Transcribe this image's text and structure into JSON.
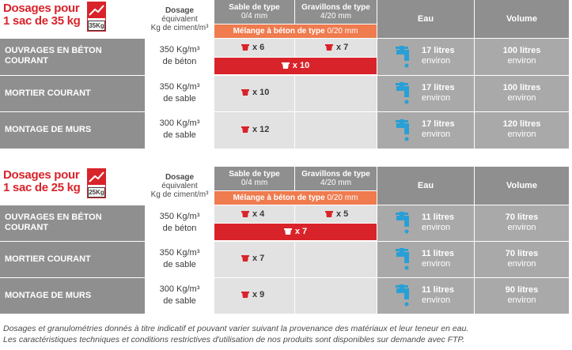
{
  "colors": {
    "red": "#d9232a",
    "orange": "#ef7b4e",
    "grey_dark": "#8f8f8f",
    "grey_light": "#e2e2e2",
    "grey_mid": "#a9a9a9",
    "water_blue": "#2a9fd6"
  },
  "header": {
    "dose_line1": "Dosage",
    "dose_line2": "équivalent",
    "dose_line3": "Kg de ciment/m³",
    "sable_title": "Sable de type",
    "sable_sub": "0/4 mm",
    "grav_title": "Gravillons de type",
    "grav_sub": "4/20 mm",
    "eau": "Eau",
    "volume": "Volume",
    "melange_bold": "Mélange à béton de type",
    "melange_light": "0/20 mm"
  },
  "blocks": [
    {
      "title": "Dosages pour 1 sac de 35 kg",
      "bag_label": "35Kg",
      "rows": [
        {
          "label": "OUVRAGES EN BÉTON COURANT",
          "dose": "350 Kg/m³",
          "dose2": "de béton",
          "sable": "x 6",
          "grav": "x 7",
          "melange": "x 10",
          "eau1": "17 litres",
          "eau2": "environ",
          "vol1": "100 litres",
          "vol2": "environ"
        },
        {
          "label": "MORTIER COURANT",
          "dose": "350 Kg/m³",
          "dose2": "de sable",
          "sable": "x 10",
          "eau1": "17 litres",
          "eau2": "environ",
          "vol1": "100 litres",
          "vol2": "environ"
        },
        {
          "label": "MONTAGE DE MURS",
          "dose": "300 Kg/m³",
          "dose2": "de sable",
          "sable": "x 12",
          "eau1": "17 litres",
          "eau2": "environ",
          "vol1": "120 litres",
          "vol2": "environ"
        }
      ]
    },
    {
      "title": "Dosages pour 1 sac de 25 kg",
      "bag_label": "25Kg",
      "rows": [
        {
          "label": "OUVRAGES EN BÉTON COURANT",
          "dose": "350 Kg/m³",
          "dose2": "de béton",
          "sable": "x 4",
          "grav": "x 5",
          "melange": "x 7",
          "eau1": "11 litres",
          "eau2": "environ",
          "vol1": "70 litres",
          "vol2": "environ"
        },
        {
          "label": "MORTIER COURANT",
          "dose": "350 Kg/m³",
          "dose2": "de sable",
          "sable": "x 7",
          "eau1": "11 litres",
          "eau2": "environ",
          "vol1": "70 litres",
          "vol2": "environ"
        },
        {
          "label": "MONTAGE DE MURS",
          "dose": "300 Kg/m³",
          "dose2": "de sable",
          "sable": "x 9",
          "eau1": "11 litres",
          "eau2": "environ",
          "vol1": "90 litres",
          "vol2": "environ"
        }
      ]
    }
  ],
  "footer": {
    "line1": "Dosages et granulométries donnés à titre indicatif et pouvant varier suivant la provenance des matériaux et leur teneur en eau.",
    "line2": "Les caractéristiques techniques et conditions restrictives d'utilisation de nos produits sont disponibles sur demande avec FTP."
  }
}
